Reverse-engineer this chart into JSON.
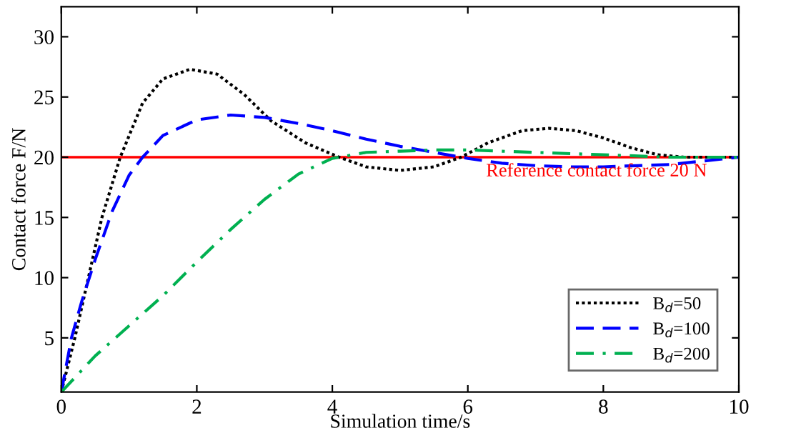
{
  "chart_data": {
    "type": "line",
    "xlabel": "Simulation time/s",
    "ylabel": "Contact force F/N",
    "xlim": [
      0,
      10
    ],
    "ylim": [
      0.5,
      32.5
    ],
    "xticks": [
      0,
      2,
      4,
      6,
      8,
      10
    ],
    "yticks": [
      5,
      10,
      15,
      20,
      25,
      30
    ],
    "grid": false,
    "legend": "bottom right",
    "marker": "none",
    "ref_lines": [
      {
        "axis": "y",
        "value": 20,
        "label": "Reference contact force 20 N",
        "color": "#ff0000",
        "line_style": "solid"
      }
    ],
    "series": [
      {
        "name": "B$_{d}$=50",
        "color": "#000000",
        "line_style": "dotted",
        "x": [
          0,
          0.2,
          0.4,
          0.6,
          0.87,
          1.2,
          1.5,
          1.9,
          2.3,
          2.7,
          3.1,
          3.6,
          4.1,
          4.5,
          5.0,
          5.5,
          5.9,
          6.3,
          6.8,
          7.2,
          7.6,
          8.0,
          8.4,
          8.8,
          9.2,
          10
        ],
        "values": [
          0.5,
          5,
          10,
          15,
          20,
          24.5,
          26.5,
          27.3,
          26.9,
          25.2,
          23,
          21.2,
          20,
          19.2,
          18.9,
          19.2,
          20,
          21.2,
          22.2,
          22.4,
          22.2,
          21.6,
          20.8,
          20.2,
          20,
          20
        ]
      },
      {
        "name": "B$_{d}$=100",
        "color": "#0000ff",
        "line_style": "dashed",
        "x": [
          0,
          0.15,
          0.3,
          0.5,
          0.75,
          1.0,
          1.2,
          1.5,
          2.0,
          2.5,
          3.0,
          3.5,
          4.0,
          4.5,
          5.0,
          5.5,
          6.0,
          6.5,
          7.0,
          7.5,
          8.0,
          8.5,
          9.0,
          9.5,
          10
        ],
        "values": [
          0.5,
          5,
          8,
          11.5,
          15.5,
          18.5,
          20,
          21.8,
          23.1,
          23.5,
          23.3,
          22.8,
          22.2,
          21.5,
          20.9,
          20.4,
          19.9,
          19.5,
          19.3,
          19.2,
          19.2,
          19.3,
          19.4,
          19.7,
          20
        ]
      },
      {
        "name": "B$_{d}$=200",
        "color": "#00b050",
        "line_style": "dashdot",
        "x": [
          0,
          0.5,
          1,
          1.5,
          2,
          2.5,
          3,
          3.5,
          4,
          4.5,
          5,
          5.5,
          6,
          7,
          8,
          9,
          10
        ],
        "values": [
          0.5,
          3.5,
          6,
          8.5,
          11.3,
          14,
          16.5,
          18.6,
          19.9,
          20.4,
          20.5,
          20.6,
          20.6,
          20.4,
          20.2,
          20,
          20
        ]
      }
    ]
  }
}
